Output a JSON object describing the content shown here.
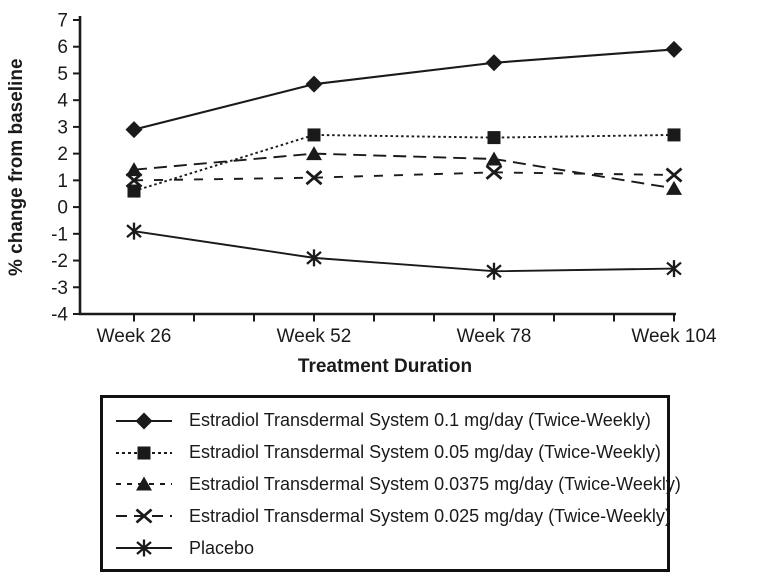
{
  "chart_data": {
    "type": "line",
    "title": "",
    "xlabel": "Treatment Duration",
    "ylabel": "% change from baseline",
    "x_categories": [
      "Week 26",
      "Week 52",
      "Week 78",
      "Week 104"
    ],
    "yticks": [
      7,
      6,
      5,
      4,
      3,
      2,
      1,
      0,
      -1,
      -2,
      -3,
      -4
    ],
    "ylim": [
      -4,
      7
    ],
    "grid": false,
    "ink_color": "#1a1a1a",
    "legend_position": "bottom-box",
    "series": [
      {
        "name": "Estradiol Transdermal System 0.1 mg/day (Twice-Weekly)",
        "marker": "diamond",
        "line_style": "solid",
        "values": [
          2.9,
          4.6,
          5.4,
          5.9
        ]
      },
      {
        "name": "Estradiol Transdermal System 0.05 mg/day (Twice-Weekly)",
        "marker": "square",
        "line_style": "dotted",
        "values": [
          0.6,
          2.7,
          2.6,
          2.7
        ]
      },
      {
        "name": "Estradiol Transdermal System 0.0375 mg/day (Twice-Weekly)",
        "marker": "triangle",
        "line_style": "dashed",
        "values": [
          1.4,
          2.0,
          1.8,
          0.7
        ]
      },
      {
        "name": "Estradiol Transdermal System 0.025 mg/day (Twice-Weekly)",
        "marker": "x-cross",
        "line_style": "long-dash",
        "values": [
          1.0,
          1.1,
          1.3,
          1.2
        ]
      },
      {
        "name": "Placebo",
        "marker": "asterisk",
        "line_style": "solid",
        "values": [
          -0.9,
          -1.9,
          -2.4,
          -2.3
        ]
      }
    ]
  }
}
